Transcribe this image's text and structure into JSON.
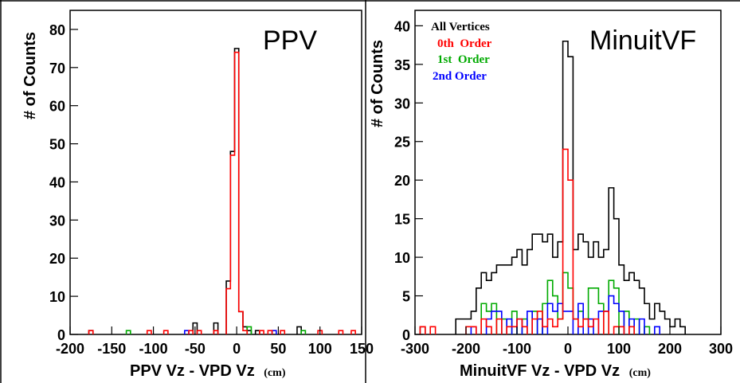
{
  "chart_data": [
    {
      "type": "histogram",
      "title": "PPV",
      "xlabel": "PPV Vz - VPD Vz",
      "xlabel_unit": "(cm)",
      "ylabel": "# of Counts",
      "xlim": [
        -200,
        150
      ],
      "ylim": [
        0,
        85
      ],
      "x_ticks": [
        "-200",
        "-150",
        "-100",
        "-50",
        "0",
        "50",
        "100",
        "150"
      ],
      "x_tick_values": [
        -200,
        -150,
        -100,
        -50,
        0,
        50,
        100,
        150
      ],
      "y_ticks": [
        "0",
        "10",
        "20",
        "30",
        "40",
        "50",
        "60",
        "70",
        "80"
      ],
      "y_tick_values": [
        0,
        10,
        20,
        30,
        40,
        50,
        60,
        70,
        80
      ],
      "bin_width": 5,
      "series": [
        {
          "color": "#000000",
          "bins": [
            {
              "x": -175,
              "y": 1
            },
            {
              "x": -50,
              "y": 3
            },
            {
              "x": -25,
              "y": 3
            },
            {
              "x": -10,
              "y": 14
            },
            {
              "x": -5,
              "y": 48
            },
            {
              "x": 0,
              "y": 75
            },
            {
              "x": 5,
              "y": 6
            },
            {
              "x": 10,
              "y": 2
            },
            {
              "x": 15,
              "y": 1
            },
            {
              "x": 25,
              "y": 1
            },
            {
              "x": 75,
              "y": 2
            }
          ]
        },
        {
          "color": "#00aa00",
          "bins": [
            {
              "x": -130,
              "y": 1
            },
            {
              "x": 15,
              "y": 2
            },
            {
              "x": 80,
              "y": 1
            }
          ]
        },
        {
          "color": "#0000ff",
          "bins": [
            {
              "x": -60,
              "y": 1
            },
            {
              "x": 45,
              "y": 1
            }
          ]
        },
        {
          "color": "#ff0000",
          "bins": [
            {
              "x": -175,
              "y": 1
            },
            {
              "x": -105,
              "y": 1
            },
            {
              "x": -85,
              "y": 1
            },
            {
              "x": -55,
              "y": 1
            },
            {
              "x": -45,
              "y": 1
            },
            {
              "x": -25,
              "y": 1
            },
            {
              "x": -10,
              "y": 12
            },
            {
              "x": -5,
              "y": 47
            },
            {
              "x": 0,
              "y": 74
            },
            {
              "x": 5,
              "y": 6
            },
            {
              "x": 10,
              "y": 1
            },
            {
              "x": 30,
              "y": 1
            },
            {
              "x": 40,
              "y": 1
            },
            {
              "x": 55,
              "y": 1
            },
            {
              "x": 100,
              "y": 1
            },
            {
              "x": 125,
              "y": 1
            },
            {
              "x": 140,
              "y": 1
            }
          ]
        }
      ]
    },
    {
      "type": "histogram",
      "title": "MinuitVF",
      "xlabel": "MinuitVF Vz - VPD Vz",
      "xlabel_unit": "(cm)",
      "ylabel": "# of Counts",
      "xlim": [
        -300,
        300
      ],
      "ylim": [
        0,
        42
      ],
      "x_ticks": [
        "-300",
        "-200",
        "-100",
        "0",
        "100",
        "200",
        "300"
      ],
      "x_tick_values": [
        -300,
        -200,
        -100,
        0,
        100,
        200,
        300
      ],
      "y_ticks": [
        "0",
        "5",
        "10",
        "15",
        "20",
        "25",
        "30",
        "35",
        "40"
      ],
      "y_tick_values": [
        0,
        5,
        10,
        15,
        20,
        25,
        30,
        35,
        40
      ],
      "bin_width": 10,
      "legend": [
        "All Vertices",
        "0th  Order",
        "1st  Order",
        "2nd Order"
      ],
      "legend_colors": [
        "#000000",
        "#ff0000",
        "#00aa00",
        "#0000ff"
      ],
      "legend_placement": "top-left",
      "series": [
        {
          "color": "#000000",
          "bins": [
            {
              "x": -285,
              "y": 1
            },
            {
              "x": -215,
              "y": 2
            },
            {
              "x": -205,
              "y": 2
            },
            {
              "x": -195,
              "y": 2
            },
            {
              "x": -185,
              "y": 3
            },
            {
              "x": -175,
              "y": 6
            },
            {
              "x": -165,
              "y": 8
            },
            {
              "x": -155,
              "y": 7
            },
            {
              "x": -145,
              "y": 8
            },
            {
              "x": -135,
              "y": 9
            },
            {
              "x": -125,
              "y": 9
            },
            {
              "x": -115,
              "y": 9
            },
            {
              "x": -105,
              "y": 10
            },
            {
              "x": -95,
              "y": 11
            },
            {
              "x": -85,
              "y": 9
            },
            {
              "x": -75,
              "y": 11
            },
            {
              "x": -65,
              "y": 13
            },
            {
              "x": -55,
              "y": 13
            },
            {
              "x": -45,
              "y": 12
            },
            {
              "x": -35,
              "y": 13
            },
            {
              "x": -25,
              "y": 10
            },
            {
              "x": -15,
              "y": 12
            },
            {
              "x": -5,
              "y": 38
            },
            {
              "x": 5,
              "y": 36
            },
            {
              "x": 15,
              "y": 11
            },
            {
              "x": 25,
              "y": 13
            },
            {
              "x": 35,
              "y": 12
            },
            {
              "x": 45,
              "y": 10
            },
            {
              "x": 55,
              "y": 12
            },
            {
              "x": 65,
              "y": 10
            },
            {
              "x": 75,
              "y": 11
            },
            {
              "x": 85,
              "y": 19
            },
            {
              "x": 95,
              "y": 15
            },
            {
              "x": 105,
              "y": 9
            },
            {
              "x": 115,
              "y": 7
            },
            {
              "x": 125,
              "y": 8
            },
            {
              "x": 135,
              "y": 7
            },
            {
              "x": 145,
              "y": 6
            },
            {
              "x": 155,
              "y": 4
            },
            {
              "x": 165,
              "y": 2
            },
            {
              "x": 175,
              "y": 4
            },
            {
              "x": 185,
              "y": 3
            },
            {
              "x": 195,
              "y": 2
            },
            {
              "x": 205,
              "y": 1
            },
            {
              "x": 215,
              "y": 2
            },
            {
              "x": 225,
              "y": 1
            }
          ]
        },
        {
          "color": "#00aa00",
          "bins": [
            {
              "x": -165,
              "y": 4
            },
            {
              "x": -155,
              "y": 3
            },
            {
              "x": -145,
              "y": 4
            },
            {
              "x": -125,
              "y": 2
            },
            {
              "x": -105,
              "y": 3
            },
            {
              "x": -85,
              "y": 2
            },
            {
              "x": -65,
              "y": 3
            },
            {
              "x": -45,
              "y": 4
            },
            {
              "x": -35,
              "y": 7
            },
            {
              "x": -25,
              "y": 5
            },
            {
              "x": -15,
              "y": 2
            },
            {
              "x": -5,
              "y": 8
            },
            {
              "x": 5,
              "y": 6
            },
            {
              "x": 15,
              "y": 2
            },
            {
              "x": 25,
              "y": 3
            },
            {
              "x": 35,
              "y": 2
            },
            {
              "x": 45,
              "y": 6
            },
            {
              "x": 55,
              "y": 6
            },
            {
              "x": 65,
              "y": 4
            },
            {
              "x": 85,
              "y": 7
            },
            {
              "x": 95,
              "y": 6
            },
            {
              "x": 115,
              "y": 3
            },
            {
              "x": 135,
              "y": 2
            },
            {
              "x": 155,
              "y": 1
            }
          ]
        },
        {
          "color": "#0000ff",
          "bins": [
            {
              "x": -185,
              "y": 1
            },
            {
              "x": -155,
              "y": 2
            },
            {
              "x": -145,
              "y": 3
            },
            {
              "x": -135,
              "y": 3
            },
            {
              "x": -115,
              "y": 2
            },
            {
              "x": -95,
              "y": 2
            },
            {
              "x": -75,
              "y": 3
            },
            {
              "x": -55,
              "y": 2
            },
            {
              "x": -35,
              "y": 4
            },
            {
              "x": -25,
              "y": 3
            },
            {
              "x": -15,
              "y": 4
            },
            {
              "x": -5,
              "y": 3
            },
            {
              "x": 5,
              "y": 3
            },
            {
              "x": 25,
              "y": 4
            },
            {
              "x": 45,
              "y": 2
            },
            {
              "x": 65,
              "y": 3
            },
            {
              "x": 75,
              "y": 3
            },
            {
              "x": 85,
              "y": 5
            },
            {
              "x": 95,
              "y": 4
            },
            {
              "x": 105,
              "y": 3
            },
            {
              "x": 125,
              "y": 2
            },
            {
              "x": 145,
              "y": 2
            },
            {
              "x": 175,
              "y": 1
            }
          ]
        },
        {
          "color": "#ff0000",
          "bins": [
            {
              "x": -285,
              "y": 1
            },
            {
              "x": -265,
              "y": 1
            },
            {
              "x": -195,
              "y": 1
            },
            {
              "x": -185,
              "y": 1
            },
            {
              "x": -165,
              "y": 2
            },
            {
              "x": -155,
              "y": 1
            },
            {
              "x": -135,
              "y": 2
            },
            {
              "x": -115,
              "y": 1
            },
            {
              "x": -105,
              "y": 1
            },
            {
              "x": -95,
              "y": 2
            },
            {
              "x": -85,
              "y": 1
            },
            {
              "x": -65,
              "y": 2
            },
            {
              "x": -55,
              "y": 3
            },
            {
              "x": -45,
              "y": 1
            },
            {
              "x": -35,
              "y": 2
            },
            {
              "x": -25,
              "y": 1
            },
            {
              "x": -15,
              "y": 2
            },
            {
              "x": -5,
              "y": 24
            },
            {
              "x": 5,
              "y": 20
            },
            {
              "x": 15,
              "y": 2
            },
            {
              "x": 25,
              "y": 1
            },
            {
              "x": 35,
              "y": 2
            },
            {
              "x": 45,
              "y": 1
            },
            {
              "x": 55,
              "y": 2
            },
            {
              "x": 75,
              "y": 3
            },
            {
              "x": 95,
              "y": 1
            },
            {
              "x": 105,
              "y": 1
            },
            {
              "x": 125,
              "y": 1
            }
          ]
        }
      ]
    }
  ]
}
